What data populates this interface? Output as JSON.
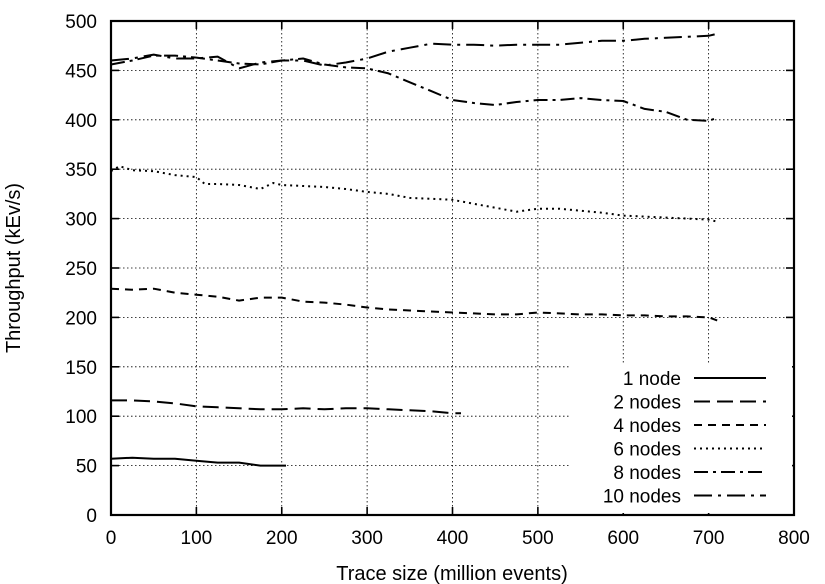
{
  "chart_data": {
    "type": "line",
    "title": "",
    "xlabel": "Trace size (million events)",
    "ylabel": "Throughput (kEv/s)",
    "xlim": [
      0,
      800
    ],
    "ylim": [
      0,
      500
    ],
    "xticks": [
      0,
      100,
      200,
      300,
      400,
      500,
      600,
      700,
      800
    ],
    "yticks": [
      0,
      50,
      100,
      150,
      200,
      250,
      300,
      350,
      400,
      450,
      500
    ],
    "grid": true,
    "legend_position": "bottom-right",
    "series": [
      {
        "name": "1 node",
        "dash": "solid",
        "x": [
          0,
          25,
          50,
          75,
          100,
          125,
          150,
          175,
          200,
          205
        ],
        "y": [
          57,
          58,
          57,
          57,
          55,
          53,
          53,
          50,
          50,
          50
        ]
      },
      {
        "name": "2 nodes",
        "dash": "long-dash",
        "x": [
          0,
          25,
          50,
          75,
          100,
          125,
          150,
          175,
          200,
          225,
          250,
          275,
          300,
          325,
          350,
          375,
          400,
          410
        ],
        "y": [
          116,
          116,
          115,
          113,
          110,
          109,
          108,
          107,
          107,
          108,
          107,
          108,
          108,
          107,
          106,
          105,
          103,
          103
        ]
      },
      {
        "name": "4 nodes",
        "dash": "dash",
        "x": [
          0,
          25,
          50,
          75,
          100,
          125,
          150,
          175,
          200,
          225,
          250,
          275,
          300,
          325,
          350,
          375,
          400,
          425,
          450,
          475,
          500,
          525,
          550,
          575,
          600,
          625,
          650,
          675,
          700,
          710
        ],
        "y": [
          229,
          228,
          229,
          225,
          223,
          221,
          217,
          220,
          220,
          216,
          215,
          213,
          210,
          208,
          207,
          206,
          205,
          204,
          203,
          203,
          205,
          204,
          203,
          203,
          202,
          202,
          201,
          201,
          200,
          197
        ]
      },
      {
        "name": "6 nodes",
        "dash": "dot",
        "x": [
          0,
          10,
          25,
          50,
          75,
          100,
          110,
          125,
          150,
          175,
          190,
          200,
          225,
          250,
          275,
          300,
          325,
          350,
          375,
          400,
          425,
          450,
          475,
          500,
          525,
          550,
          575,
          600,
          625,
          650,
          675,
          700,
          710
        ],
        "y": [
          348,
          353,
          349,
          348,
          344,
          342,
          335,
          335,
          334,
          330,
          336,
          334,
          333,
          332,
          330,
          327,
          325,
          321,
          320,
          319,
          315,
          311,
          307,
          310,
          310,
          308,
          306,
          303,
          302,
          301,
          300,
          299,
          297
        ]
      },
      {
        "name": "8 nodes",
        "dash": "dash-dot",
        "x": [
          0,
          25,
          50,
          75,
          100,
          125,
          150,
          175,
          200,
          225,
          250,
          275,
          300,
          325,
          350,
          375,
          400,
          425,
          450,
          475,
          500,
          525,
          550,
          575,
          600,
          625,
          650,
          675,
          700,
          710
        ],
        "y": [
          456,
          460,
          465,
          465,
          463,
          460,
          457,
          456,
          460,
          462,
          456,
          453,
          452,
          447,
          438,
          429,
          420,
          417,
          415,
          418,
          420,
          420,
          422,
          420,
          419,
          411,
          408,
          400,
          399,
          402
        ]
      },
      {
        "name": "10 nodes",
        "dash": "dash-dot-long",
        "x": [
          0,
          25,
          50,
          75,
          100,
          125,
          150,
          175,
          200,
          225,
          250,
          275,
          300,
          325,
          350,
          375,
          400,
          425,
          450,
          475,
          500,
          525,
          550,
          575,
          600,
          625,
          650,
          675,
          700,
          710
        ],
        "y": [
          460,
          462,
          466,
          462,
          462,
          464,
          452,
          458,
          460,
          460,
          455,
          458,
          462,
          469,
          473,
          477,
          476,
          476,
          475,
          476,
          476,
          476,
          478,
          480,
          480,
          482,
          483,
          484,
          485,
          487
        ]
      }
    ]
  }
}
